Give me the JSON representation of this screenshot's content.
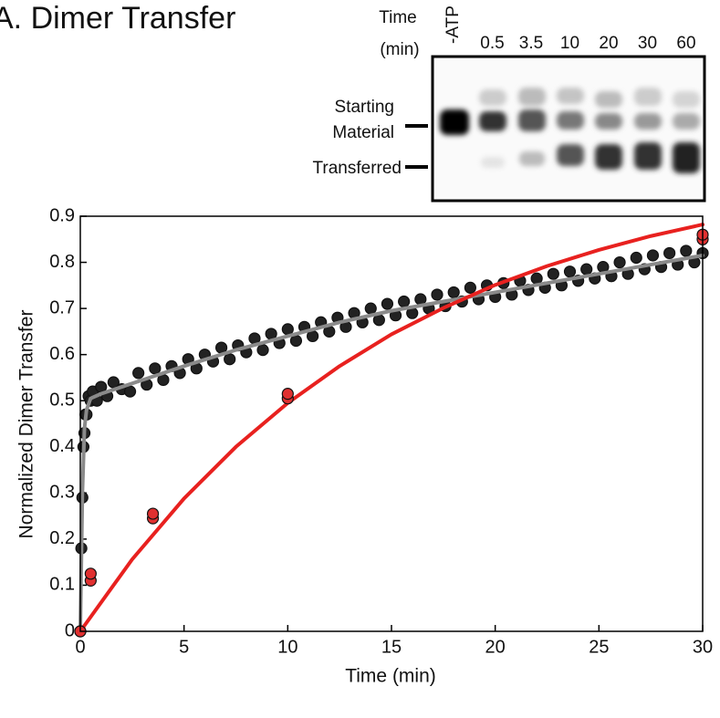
{
  "chart_data": {
    "type": "scatter",
    "title": "A. Dimer Transfer",
    "x_label": "Time (min)",
    "y_label": "Normalized Dimer Transfer",
    "xlim": [
      0,
      30
    ],
    "xticks": [
      0,
      5,
      10,
      15,
      20,
      25,
      30
    ],
    "ylim": [
      0,
      0.9
    ],
    "yticks": [
      0,
      0.1,
      0.2,
      0.3,
      0.4,
      0.5,
      0.6,
      0.7,
      0.8,
      0.9
    ],
    "series": [
      {
        "style": "markers",
        "color": "#222222",
        "x": [
          0,
          0.05,
          0.1,
          0.15,
          0.2,
          0.25,
          0.3,
          0.4,
          0.5,
          0.6,
          0.8,
          1.0,
          1.3,
          1.6,
          2,
          2.4,
          2.8,
          3.2,
          3.6,
          4,
          4.4,
          4.8,
          5.2,
          5.6,
          6,
          6.4,
          6.8,
          7.2,
          7.6,
          8,
          8.4,
          8.8,
          9.2,
          9.6,
          10,
          10.4,
          10.8,
          11.2,
          11.6,
          12,
          12.4,
          12.8,
          13.2,
          13.6,
          14,
          14.4,
          14.8,
          15.2,
          15.6,
          16,
          16.4,
          16.8,
          17.2,
          17.6,
          18,
          18.4,
          18.8,
          19.2,
          19.6,
          20,
          20.4,
          20.8,
          21.2,
          21.6,
          22,
          22.4,
          22.8,
          23.2,
          23.6,
          24,
          24.4,
          24.8,
          25.2,
          25.6,
          26,
          26.4,
          26.8,
          27.2,
          27.6,
          28,
          28.4,
          28.8,
          29.2,
          29.6,
          30
        ],
        "values": [
          0,
          0.18,
          0.29,
          0.4,
          0.43,
          0.47,
          0.47,
          0.51,
          0.5,
          0.52,
          0.5,
          0.53,
          0.51,
          0.54,
          0.525,
          0.52,
          0.56,
          0.535,
          0.57,
          0.545,
          0.575,
          0.56,
          0.59,
          0.57,
          0.6,
          0.585,
          0.615,
          0.59,
          0.62,
          0.605,
          0.635,
          0.61,
          0.645,
          0.625,
          0.655,
          0.63,
          0.66,
          0.64,
          0.67,
          0.65,
          0.68,
          0.66,
          0.69,
          0.67,
          0.7,
          0.675,
          0.71,
          0.685,
          0.715,
          0.69,
          0.72,
          0.7,
          0.73,
          0.705,
          0.735,
          0.715,
          0.745,
          0.72,
          0.75,
          0.725,
          0.755,
          0.73,
          0.76,
          0.74,
          0.765,
          0.745,
          0.775,
          0.75,
          0.78,
          0.76,
          0.785,
          0.765,
          0.79,
          0.77,
          0.8,
          0.775,
          0.81,
          0.785,
          0.815,
          0.79,
          0.82,
          0.795,
          0.825,
          0.8,
          0.82
        ]
      },
      {
        "style": "line",
        "color": "#8a8a8a",
        "x": [
          0,
          0.1,
          0.2,
          0.3,
          0.5,
          1,
          2,
          3,
          5,
          7.5,
          10,
          12.5,
          15,
          17.5,
          20,
          22.5,
          25,
          27.5,
          30
        ],
        "values": [
          0,
          0.3,
          0.44,
          0.48,
          0.505,
          0.515,
          0.53,
          0.545,
          0.575,
          0.61,
          0.64,
          0.67,
          0.695,
          0.715,
          0.735,
          0.755,
          0.775,
          0.795,
          0.815
        ]
      },
      {
        "style": "line",
        "color": "#e8211f",
        "x": [
          0,
          2.5,
          5,
          7.5,
          10,
          12.5,
          15,
          17.5,
          20,
          22.5,
          25,
          27.5,
          30
        ],
        "values": [
          0,
          0.156,
          0.288,
          0.4,
          0.495,
          0.575,
          0.644,
          0.701,
          0.751,
          0.792,
          0.827,
          0.857,
          0.882
        ]
      },
      {
        "style": "markers",
        "color": "#e03030",
        "x": [
          0,
          0.5,
          0.5,
          3.5,
          3.5,
          10,
          10,
          30,
          30
        ],
        "values": [
          0,
          0.11,
          0.125,
          0.245,
          0.255,
          0.505,
          0.515,
          0.85,
          0.86
        ]
      }
    ]
  },
  "gel": {
    "time_label": "Time",
    "unit_label": "(min)",
    "lanes": [
      "-ATP",
      "0.5",
      "3.5",
      "10",
      "20",
      "30",
      "60"
    ],
    "starting_label": [
      "Starting",
      "Material"
    ],
    "transferred_label": "Transferred"
  }
}
